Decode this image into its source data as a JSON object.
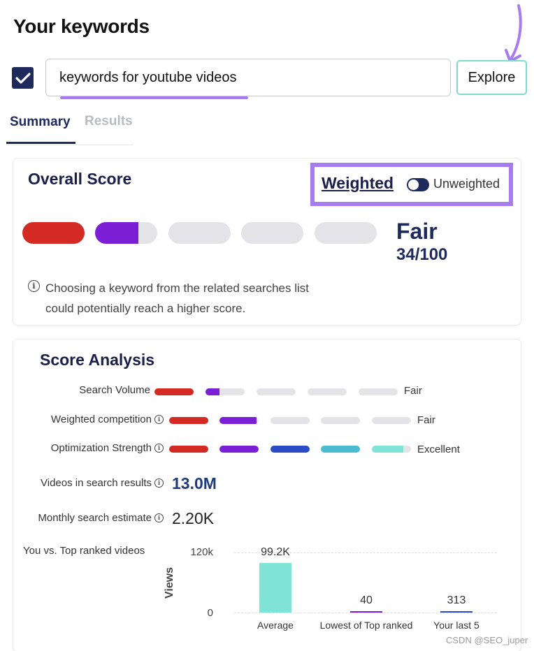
{
  "page_title": "Your keywords",
  "search": {
    "value": "keywords for youtube videos",
    "checked": true
  },
  "explore_label": "Explore",
  "tabs": [
    {
      "label": "Summary",
      "active": true
    },
    {
      "label": "Results",
      "active": false
    }
  ],
  "overall": {
    "title": "Overall Score",
    "weighted_label": "Weighted",
    "unweighted_label": "Unweighted",
    "segments": [
      {
        "color": "#d42a24",
        "fill": 1.0
      },
      {
        "color": "#7a1fd6",
        "fill": 0.7
      },
      {
        "color": "#e4e4e8",
        "fill": 0
      },
      {
        "color": "#e4e4e8",
        "fill": 0
      },
      {
        "color": "#e4e4e8",
        "fill": 0
      }
    ],
    "rating": "Fair",
    "score": "34/100",
    "note": "Choosing a keyword from the related searches list could potentially reach a higher score."
  },
  "analysis": {
    "title": "Score Analysis",
    "metrics": [
      {
        "label": "Search Volume",
        "info": false,
        "rating": "Fair",
        "fills": [
          1.0,
          0.35,
          0,
          0,
          0
        ]
      },
      {
        "label": "Weighted competition",
        "info": true,
        "rating": "Fair",
        "fills": [
          1.0,
          0.95,
          0,
          0,
          0
        ]
      },
      {
        "label": "Optimization Strength",
        "info": true,
        "rating": "Excellent",
        "fills": [
          1.0,
          1.0,
          1.0,
          1.0,
          0.8
        ]
      }
    ],
    "bar_colors": [
      "#d42a24",
      "#7a1fd6",
      "#2b4cc4",
      "#4bbcd0",
      "#7fe3d6"
    ],
    "stats": [
      {
        "label": "Videos in search results",
        "value": "13.0M",
        "color": "#1f3c7a",
        "bold": true
      },
      {
        "label": "Monthly search estimate",
        "value": "2.20K",
        "color": "#222222",
        "bold": false
      }
    ],
    "chart_label": "You vs. Top ranked videos"
  },
  "chart_data": {
    "type": "bar",
    "ylabel": "Views",
    "ylim": [
      0,
      120000
    ],
    "yticks": [
      "120k",
      "0"
    ],
    "categories": [
      "Average",
      "Lowest of Top ranked",
      "Your last 5"
    ],
    "values": [
      99200,
      40,
      313
    ],
    "value_labels": [
      "99.2K",
      "40",
      "313"
    ],
    "colors": [
      "#7fe3d6",
      "#7a1fd6",
      "#2b4cc4"
    ]
  },
  "watermark": "CSDN @SEO_juper"
}
